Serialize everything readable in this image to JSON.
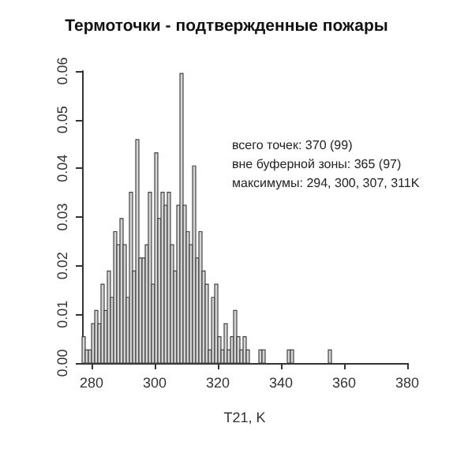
{
  "chart_data": {
    "type": "histogram",
    "title": "Термоточки - подтвержденные пожары",
    "xlabel": "T21, K",
    "annotations": [
      "всего точек: 370 (99)",
      "вне буферной зоны: 365 (97)",
      "максимумы: 294, 300, 307, 311K"
    ],
    "bins": [
      277,
      278,
      279,
      280,
      281,
      282,
      283,
      284,
      285,
      286,
      287,
      288,
      289,
      290,
      291,
      292,
      293,
      294,
      295,
      296,
      297,
      298,
      299,
      300,
      301,
      302,
      303,
      304,
      305,
      306,
      307,
      308,
      309,
      310,
      311,
      312,
      313,
      314,
      315,
      316,
      317,
      318,
      319,
      320,
      321,
      322,
      323,
      324,
      325,
      326,
      327,
      328,
      329,
      330,
      331,
      332,
      333,
      334,
      335,
      336,
      337,
      338,
      339,
      340,
      341,
      342,
      343,
      344,
      345,
      346,
      347,
      348,
      349,
      350,
      351,
      352,
      353,
      354,
      355,
      356
    ],
    "values": [
      0.0054,
      0.0027,
      0.0027,
      0.0081,
      0.0108,
      0.0081,
      0.0162,
      0.0108,
      0.0189,
      0.0135,
      0.027,
      0.0243,
      0.0297,
      0.0243,
      0.0135,
      0.0351,
      0.0189,
      0.0459,
      0.0216,
      0.0216,
      0.0243,
      0.0351,
      0.0162,
      0.0432,
      0.0297,
      0.0351,
      0.0324,
      0.0351,
      0.0243,
      0.0189,
      0.0324,
      0.0595,
      0.0324,
      0.027,
      0.0243,
      0.0405,
      0.0216,
      0.027,
      0.0189,
      0.0162,
      0.0027,
      0.0135,
      0.0162,
      0.0054,
      0.0027,
      0.0081,
      0.0027,
      0.0054,
      0.0108,
      0.0054,
      0.0027,
      0.0054,
      0.0027,
      0,
      0,
      0,
      0.0027,
      0.0027,
      0,
      0,
      0,
      0,
      0,
      0,
      0,
      0.0027,
      0.0027,
      0,
      0,
      0,
      0,
      0,
      0,
      0,
      0,
      0,
      0,
      0,
      0.0027
    ],
    "color": "#d4d4d4",
    "xlim": [
      277,
      380
    ],
    "xticks": [
      280,
      300,
      320,
      340,
      360,
      380
    ],
    "ylim": [
      0,
      0.06
    ],
    "yticks": [
      {
        "value": 0,
        "label": "0.00"
      },
      {
        "value": 0.01,
        "label": "0.01"
      },
      {
        "value": 0.02,
        "label": "0.02"
      },
      {
        "value": 0.03,
        "label": "0.03"
      },
      {
        "value": 0.04,
        "label": "0.04"
      },
      {
        "value": 0.05,
        "label": "0.05"
      },
      {
        "value": 0.06,
        "label": "0.06"
      }
    ],
    "grid": false
  }
}
